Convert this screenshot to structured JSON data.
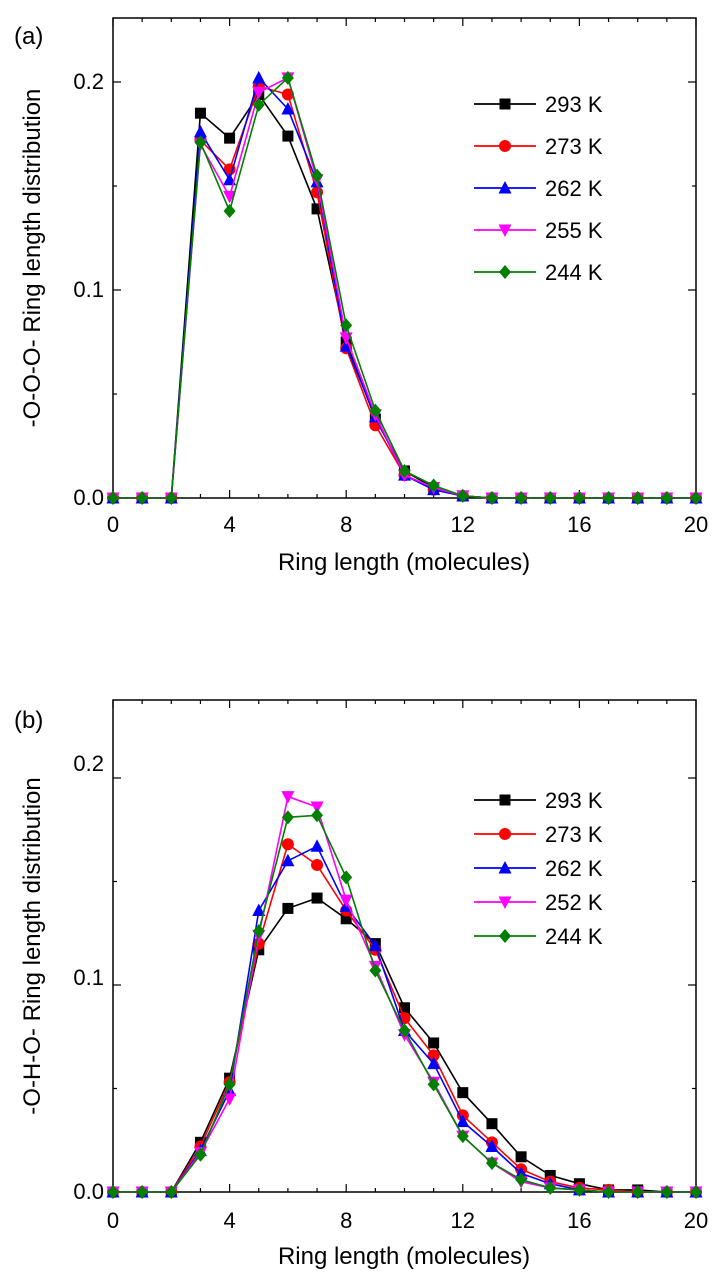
{
  "colors": {
    "293 K": "#000000",
    "273 K": "#ff0000",
    "262 K": "#0000ff",
    "255 K": "#ff00ff",
    "252 K": "#ff00ff",
    "244 K": "#008000"
  },
  "chart_data": [
    {
      "type": "line",
      "panel_label": "(a)",
      "xlabel": "Ring length (molecules)",
      "ylabel": "-O-O-O- Ring length distribution",
      "xlim": [
        0,
        20
      ],
      "ylim": [
        0,
        0.225
      ],
      "xticks": [
        0,
        4,
        8,
        12,
        16,
        20
      ],
      "xtick_labels": [
        "0",
        "4",
        "8",
        "12",
        "16",
        "20"
      ],
      "yticks": [
        0,
        0.1,
        0.2
      ],
      "ytick_labels": [
        "0.0",
        "0.1",
        "0.2"
      ],
      "grid": false,
      "legend_position": "top-right",
      "x": [
        0,
        1,
        2,
        3,
        4,
        5,
        6,
        7,
        8,
        9,
        10,
        11,
        12,
        13,
        14,
        15,
        16,
        17,
        18,
        19,
        20
      ],
      "series": [
        {
          "name": "293 K",
          "marker": "square",
          "color": "#000000",
          "values": [
            0,
            0,
            0,
            0.185,
            0.173,
            0.194,
            0.174,
            0.139,
            0.075,
            0.038,
            0.013,
            0.005,
            0.001,
            0,
            0,
            0,
            0,
            0,
            0,
            0,
            0
          ]
        },
        {
          "name": "273 K",
          "marker": "circle",
          "color": "#ff0000",
          "values": [
            0,
            0,
            0,
            0.172,
            0.158,
            0.198,
            0.194,
            0.147,
            0.072,
            0.035,
            0.011,
            0.004,
            0.001,
            0,
            0,
            0,
            0,
            0,
            0,
            0,
            0
          ]
        },
        {
          "name": "262 K",
          "marker": "triangle-up",
          "color": "#0000ff",
          "values": [
            0,
            0,
            0,
            0.176,
            0.153,
            0.202,
            0.187,
            0.152,
            0.073,
            0.039,
            0.011,
            0.004,
            0.001,
            0,
            0,
            0,
            0,
            0,
            0,
            0,
            0
          ]
        },
        {
          "name": "255 K",
          "marker": "triangle-down",
          "color": "#ff00ff",
          "values": [
            0,
            0,
            0,
            0.17,
            0.145,
            0.195,
            0.202,
            0.153,
            0.077,
            0.04,
            0.011,
            0.005,
            0.001,
            0,
            0,
            0,
            0,
            0,
            0,
            0,
            0
          ]
        },
        {
          "name": "244 K",
          "marker": "diamond",
          "color": "#008000",
          "values": [
            0,
            0,
            0,
            0.171,
            0.138,
            0.189,
            0.202,
            0.155,
            0.083,
            0.042,
            0.013,
            0.006,
            0.001,
            0,
            0,
            0,
            0,
            0,
            0,
            0,
            0
          ]
        }
      ]
    },
    {
      "type": "line",
      "panel_label": "(b)",
      "xlabel": "Ring length (molecules)",
      "ylabel": "-O-H-O- Ring length distribution",
      "xlim": [
        0,
        20
      ],
      "ylim": [
        0,
        0.225
      ],
      "xticks": [
        0,
        4,
        8,
        12,
        16,
        20
      ],
      "xtick_labels": [
        "0",
        "4",
        "8",
        "12",
        "16",
        "20"
      ],
      "yticks": [
        0,
        0.1,
        0.2
      ],
      "ytick_labels": [
        "0.0",
        "0.1",
        "0.2"
      ],
      "grid": false,
      "legend_position": "top-right",
      "x": [
        0,
        1,
        2,
        3,
        4,
        5,
        6,
        7,
        8,
        9,
        10,
        11,
        12,
        13,
        14,
        15,
        16,
        17,
        18,
        19,
        20
      ],
      "series": [
        {
          "name": "293 K",
          "marker": "square",
          "color": "#000000",
          "values": [
            0,
            0,
            0,
            0.024,
            0.055,
            0.117,
            0.137,
            0.142,
            0.132,
            0.12,
            0.089,
            0.072,
            0.048,
            0.033,
            0.017,
            0.008,
            0.004,
            0.001,
            0.001,
            0,
            0
          ]
        },
        {
          "name": "273 K",
          "marker": "circle",
          "color": "#ff0000",
          "values": [
            0,
            0,
            0,
            0.022,
            0.053,
            0.12,
            0.168,
            0.158,
            0.136,
            0.117,
            0.084,
            0.066,
            0.037,
            0.024,
            0.011,
            0.005,
            0.002,
            0.001,
            0,
            0,
            0
          ]
        },
        {
          "name": "262 K",
          "marker": "triangle-up",
          "color": "#0000ff",
          "values": [
            0,
            0,
            0,
            0.02,
            0.049,
            0.136,
            0.16,
            0.167,
            0.138,
            0.119,
            0.078,
            0.062,
            0.034,
            0.022,
            0.009,
            0.004,
            0.001,
            0,
            0,
            0,
            0
          ]
        },
        {
          "name": "252 K",
          "marker": "triangle-down",
          "color": "#ff00ff",
          "values": [
            0,
            0,
            0,
            0.019,
            0.045,
            0.124,
            0.191,
            0.186,
            0.141,
            0.109,
            0.076,
            0.053,
            0.027,
            0.014,
            0.005,
            0.002,
            0.001,
            0,
            0,
            0,
            0
          ]
        },
        {
          "name": "244 K",
          "marker": "diamond",
          "color": "#008000",
          "values": [
            0,
            0,
            0,
            0.018,
            0.052,
            0.126,
            0.181,
            0.182,
            0.152,
            0.107,
            0.078,
            0.052,
            0.027,
            0.014,
            0.006,
            0.002,
            0.001,
            0,
            0,
            0,
            0
          ]
        }
      ]
    }
  ]
}
